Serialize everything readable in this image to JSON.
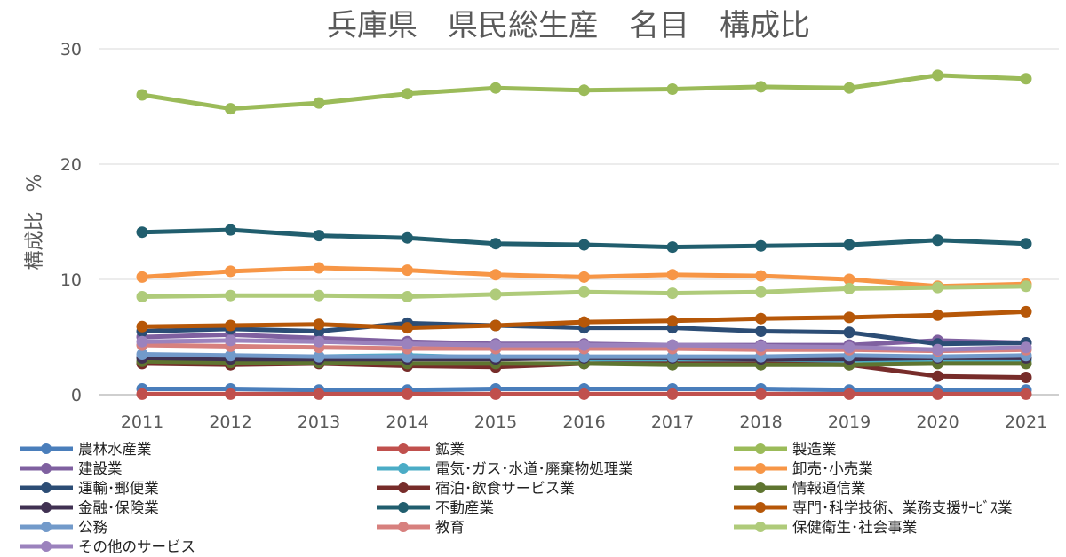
{
  "chart_data": {
    "type": "line",
    "title": "兵庫県　県民総生産　名目　構成比",
    "xlabel": "",
    "ylabel": "構成比　%",
    "x": [
      "2011",
      "2012",
      "2013",
      "2014",
      "2015",
      "2016",
      "2017",
      "2018",
      "2019",
      "2020",
      "2021"
    ],
    "ylim": [
      0,
      30
    ],
    "yticks": [
      "0",
      "10",
      "20",
      "30"
    ],
    "grid": true,
    "legend_position": "bottom",
    "series": [
      {
        "name": "農林水産業",
        "color": "#4a7ebb",
        "values": [
          0.5,
          0.5,
          0.4,
          0.4,
          0.5,
          0.5,
          0.5,
          0.5,
          0.4,
          0.4,
          0.4
        ]
      },
      {
        "name": "鉱業",
        "color": "#c0504d",
        "values": [
          0.05,
          0.05,
          0.05,
          0.05,
          0.05,
          0.05,
          0.05,
          0.05,
          0.05,
          0.05,
          0.05
        ]
      },
      {
        "name": "製造業",
        "color": "#9bbb59",
        "values": [
          26.0,
          24.8,
          25.3,
          26.1,
          26.6,
          26.4,
          26.5,
          26.7,
          26.6,
          27.7,
          27.4
        ]
      },
      {
        "name": "建設業",
        "color": "#7f60a0",
        "values": [
          5.0,
          5.2,
          4.9,
          4.6,
          4.4,
          4.4,
          4.3,
          4.3,
          4.3,
          4.7,
          4.5
        ]
      },
      {
        "name": "電気･ガス･水道･廃棄物処理業",
        "color": "#4bacc6",
        "values": [
          3.2,
          3.2,
          3.3,
          3.4,
          3.2,
          3.1,
          3.0,
          3.0,
          3.0,
          3.0,
          3.0
        ]
      },
      {
        "name": "卸売･小売業",
        "color": "#f79646",
        "values": [
          10.2,
          10.7,
          11.0,
          10.8,
          10.4,
          10.2,
          10.4,
          10.3,
          10.0,
          9.4,
          9.6
        ]
      },
      {
        "name": "運輸･郵便業",
        "color": "#2c4d75",
        "values": [
          5.5,
          5.7,
          5.5,
          6.2,
          6.0,
          5.8,
          5.8,
          5.5,
          5.4,
          4.4,
          4.5
        ]
      },
      {
        "name": "宿泊･飲食サービス業",
        "color": "#772c2a",
        "values": [
          2.7,
          2.6,
          2.7,
          2.5,
          2.4,
          2.7,
          2.7,
          2.7,
          2.6,
          1.6,
          1.5
        ]
      },
      {
        "name": "情報通信業",
        "color": "#5f7530",
        "values": [
          2.9,
          2.8,
          2.8,
          2.7,
          2.7,
          2.7,
          2.6,
          2.6,
          2.6,
          2.7,
          2.7
        ]
      },
      {
        "name": "金融･保険業",
        "color": "#403152",
        "values": [
          3.2,
          3.1,
          3.1,
          3.1,
          3.1,
          3.2,
          3.2,
          3.1,
          3.1,
          3.2,
          3.2
        ]
      },
      {
        "name": "不動産業",
        "color": "#215e6e",
        "values": [
          14.1,
          14.3,
          13.8,
          13.6,
          13.1,
          13.0,
          12.8,
          12.9,
          13.0,
          13.4,
          13.1
        ]
      },
      {
        "name": "専門･科学技術、業務支援ｻｰﾋﾞｽ業",
        "color": "#b65708",
        "values": [
          5.9,
          6.0,
          6.1,
          5.8,
          6.0,
          6.3,
          6.4,
          6.6,
          6.7,
          6.9,
          7.2
        ]
      },
      {
        "name": "公務",
        "color": "#729aca",
        "values": [
          3.5,
          3.4,
          3.3,
          3.3,
          3.3,
          3.3,
          3.3,
          3.3,
          3.4,
          3.3,
          3.4
        ]
      },
      {
        "name": "教育",
        "color": "#d7807e",
        "values": [
          4.3,
          4.2,
          4.1,
          4.0,
          4.0,
          4.0,
          4.0,
          3.9,
          3.9,
          3.8,
          3.9
        ]
      },
      {
        "name": "保健衛生･社会事業",
        "color": "#afcb7a",
        "values": [
          8.5,
          8.6,
          8.6,
          8.5,
          8.7,
          8.9,
          8.8,
          8.9,
          9.2,
          9.3,
          9.4
        ]
      },
      {
        "name": "その他のサービス",
        "color": "#9b82bd",
        "values": [
          4.6,
          4.7,
          4.6,
          4.4,
          4.3,
          4.3,
          4.3,
          4.2,
          4.1,
          3.9,
          4.1
        ]
      }
    ]
  }
}
